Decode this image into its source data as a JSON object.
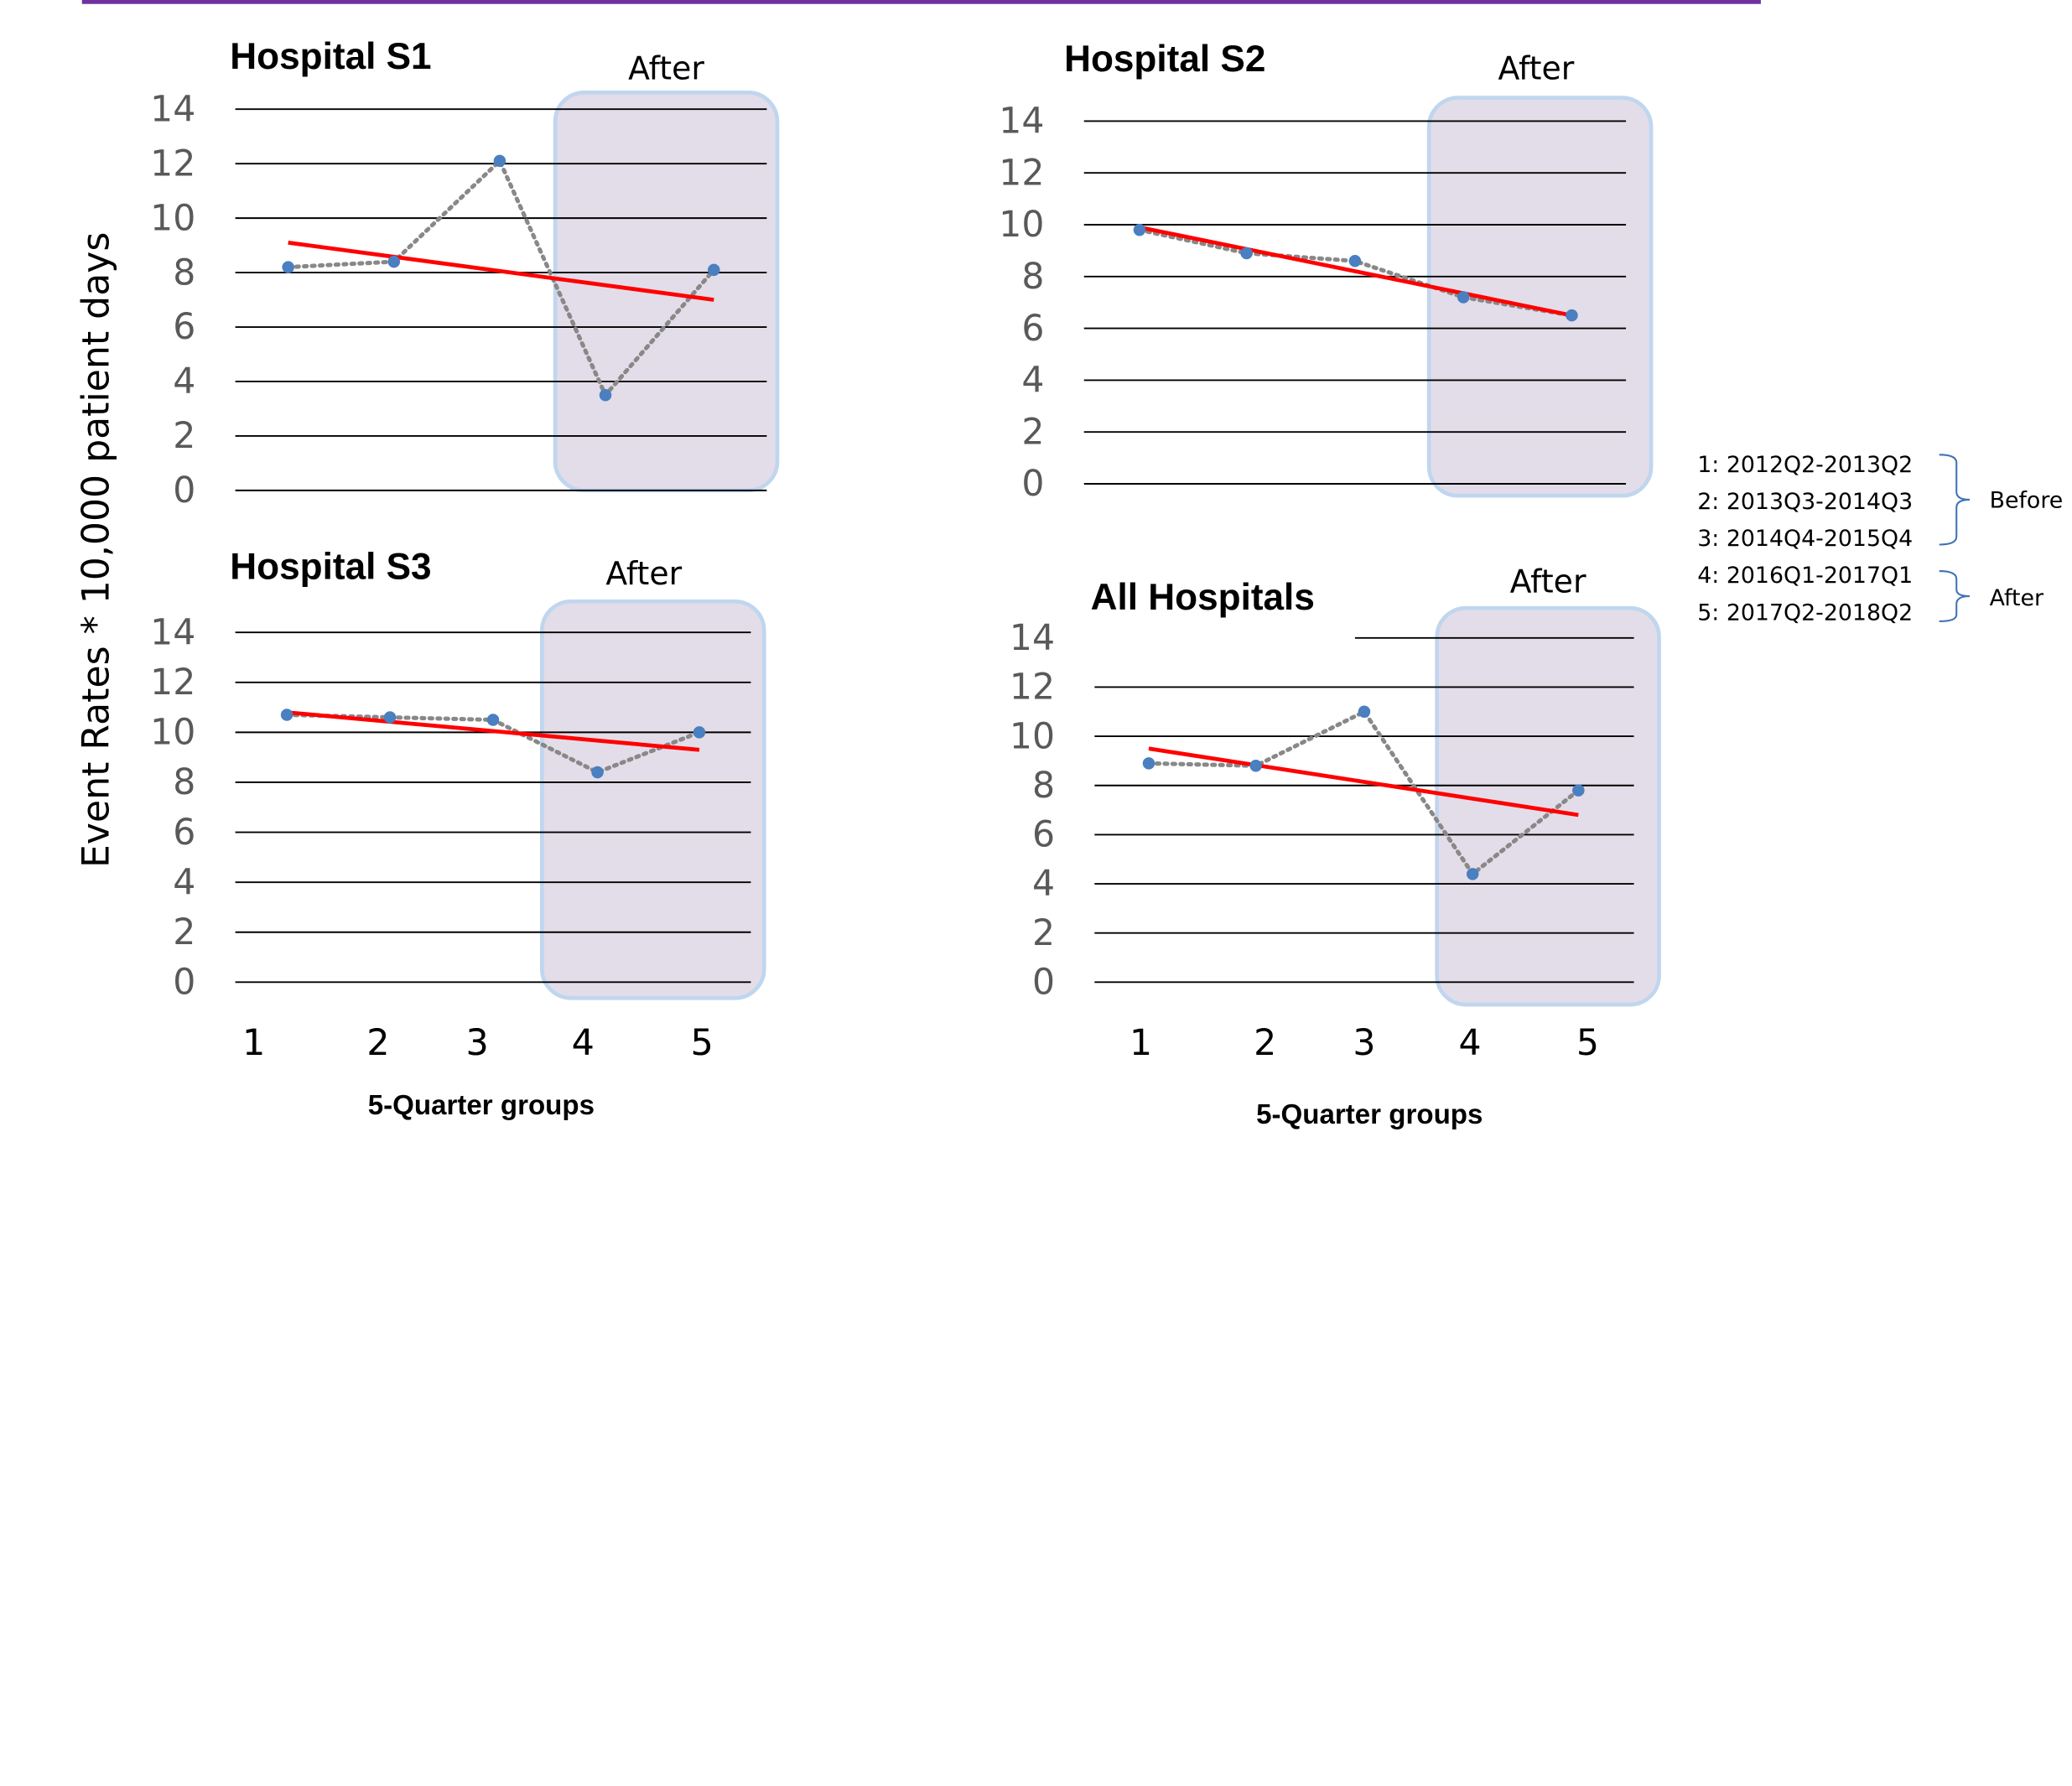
{
  "figure": {
    "ylabel": "Event  Rates * 10,000 patient days",
    "xlabel": "5-Quarter groups",
    "legend": {
      "items": [
        "1: 2012Q2-2013Q2",
        "2: 2013Q3-2014Q3",
        "3: 2014Q4-2015Q4",
        "4: 2016Q1-2017Q1",
        "5: 2017Q2-2018Q2"
      ],
      "before_label": "Before",
      "after_label": "After"
    },
    "colors": {
      "observed": "#808080",
      "trend": "#ff0000",
      "point": "#4a7fc0",
      "after_fill": "#e3dde9",
      "after_border": "#c0d6ef",
      "header_bar": "#7030a0"
    }
  },
  "chart_data": [
    {
      "type": "line",
      "title": "Hospital S1",
      "highlight_label": "After",
      "x": [
        1,
        2,
        3,
        4,
        5
      ],
      "x_tick_labels": [
        "1",
        "2",
        "3",
        "4",
        "5"
      ],
      "y_ticks": [
        0,
        2,
        4,
        6,
        8,
        10,
        12,
        14
      ],
      "ylim": [
        0,
        14
      ],
      "series": [
        {
          "values": [
            8.2,
            8.4,
            12.1,
            3.5,
            8.1
          ],
          "style": "dotted-markers"
        },
        {
          "values": [
            9.1,
            7.0
          ],
          "x": [
            1,
            5
          ],
          "style": "linear-trend"
        }
      ]
    },
    {
      "type": "line",
      "title": "Hospital S2",
      "highlight_label": "After",
      "x": [
        1,
        2,
        3,
        4,
        5
      ],
      "x_tick_labels": [],
      "y_ticks": [
        0,
        2,
        4,
        6,
        8,
        10,
        12,
        14
      ],
      "ylim": [
        0,
        14
      ],
      "series": [
        {
          "values": [
            9.8,
            8.9,
            8.6,
            7.2,
            6.5
          ],
          "style": "dotted-markers"
        },
        {
          "values": [
            9.9,
            6.5
          ],
          "x": [
            1,
            5
          ],
          "style": "linear-trend"
        }
      ]
    },
    {
      "type": "line",
      "title": "Hospital S3",
      "highlight_label": "After",
      "x": [
        1,
        2,
        3,
        4,
        5
      ],
      "x_tick_labels": [
        "1",
        "2",
        "3",
        "4",
        "5"
      ],
      "y_ticks": [
        0,
        2,
        4,
        6,
        8,
        10,
        12,
        14
      ],
      "ylim": [
        0,
        14
      ],
      "series": [
        {
          "values": [
            10.7,
            10.6,
            10.5,
            8.4,
            10.0
          ],
          "style": "dotted-markers"
        },
        {
          "values": [
            10.8,
            9.3
          ],
          "x": [
            1,
            5
          ],
          "style": "linear-trend"
        }
      ]
    },
    {
      "type": "line",
      "title": "All Hospitals",
      "highlight_label": "After",
      "x": [
        1,
        2,
        3,
        4,
        5
      ],
      "x_tick_labels": [
        "1",
        "2",
        "3",
        "4",
        "5"
      ],
      "y_ticks": [
        0,
        2,
        4,
        6,
        8,
        10,
        12,
        14
      ],
      "ylim": [
        0,
        14
      ],
      "series": [
        {
          "values": [
            8.9,
            8.8,
            11.0,
            4.4,
            7.8
          ],
          "style": "dotted-markers"
        },
        {
          "values": [
            9.5,
            6.8
          ],
          "x": [
            1,
            5
          ],
          "style": "linear-trend"
        }
      ]
    }
  ]
}
